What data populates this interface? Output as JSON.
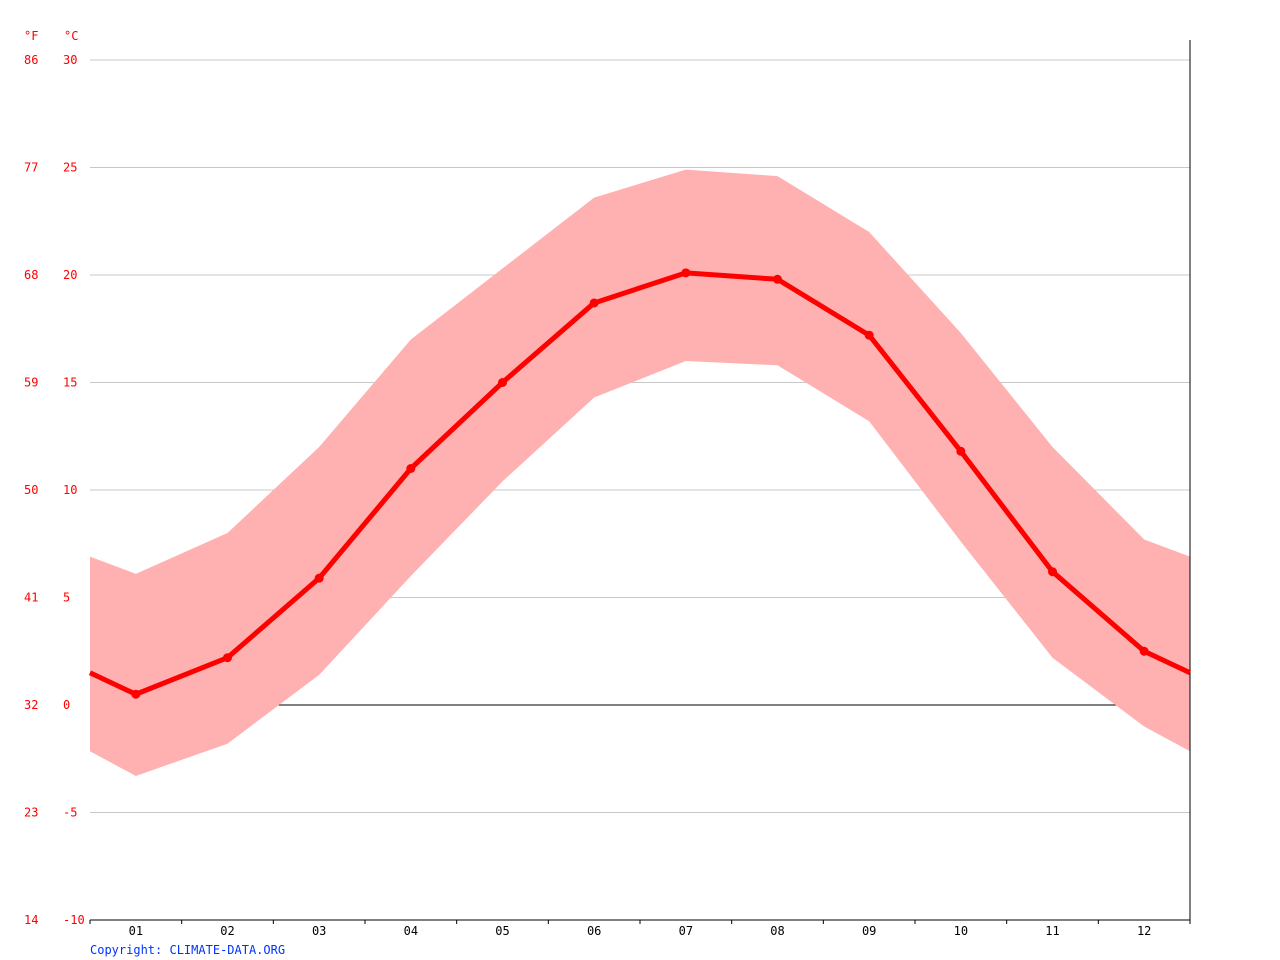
{
  "chart_data": {
    "type": "line",
    "units": {
      "fahrenheit": "°F",
      "celsius": "°C"
    },
    "y_celsius_ticks": [
      "30",
      "25",
      "20",
      "15",
      "10",
      "5",
      "0",
      "-5",
      "-10"
    ],
    "y_fahrenheit_ticks": [
      "86",
      "77",
      "68",
      "59",
      "50",
      "41",
      "32",
      "23",
      "14"
    ],
    "ylim": [
      -10,
      30
    ],
    "categories": [
      "01",
      "02",
      "03",
      "04",
      "05",
      "06",
      "07",
      "08",
      "09",
      "10",
      "11",
      "12"
    ],
    "series": [
      {
        "role": "avg",
        "values": [
          0.5,
          2.2,
          5.9,
          11.0,
          15.0,
          18.7,
          20.1,
          19.8,
          17.2,
          11.8,
          6.2,
          2.5
        ]
      },
      {
        "role": "max",
        "values": [
          6.1,
          8.0,
          12.0,
          17.0,
          20.3,
          23.6,
          24.9,
          24.6,
          22.0,
          17.3,
          12.0,
          7.7
        ]
      },
      {
        "role": "min",
        "values": [
          -3.3,
          -1.8,
          1.4,
          6.0,
          10.4,
          14.3,
          16.0,
          15.8,
          13.2,
          7.6,
          2.2,
          -1.0
        ]
      }
    ],
    "colors": {
      "avg_line": "#ff0000",
      "band": "#ffb0b0",
      "grid": "#c8c8c8",
      "zero_line": "#000000",
      "axis": "#000000"
    },
    "grid": true
  },
  "copyright": "Copyright: CLIMATE-DATA.ORG"
}
